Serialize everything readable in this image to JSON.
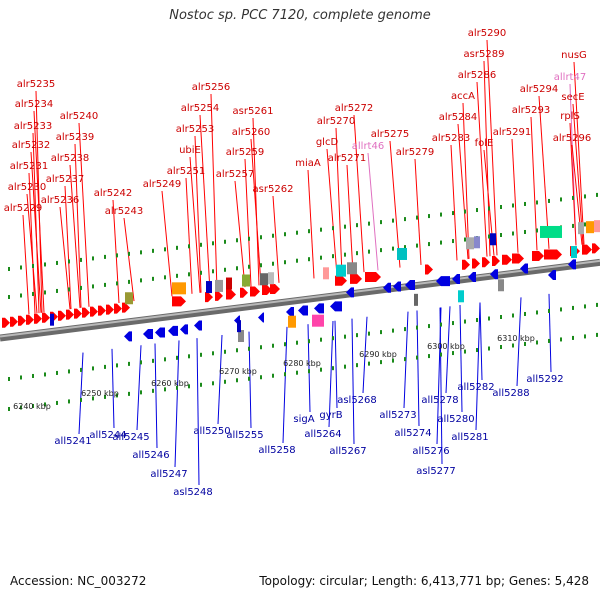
{
  "title": "Nostoc sp. PCC 7120, complete genome",
  "footer": {
    "accession": "Accession: NC_003272",
    "summary": "Topology: circular; Length: 6,413,771 bp; Genes: 5,428"
  },
  "colors": {
    "forward": "#ff0000",
    "reverse": "#0000e0",
    "trna": "#e070c0",
    "backbone": "#888888",
    "tick": "#1a8a1a"
  },
  "kbp_scale": [
    "6240 kbp",
    "6250 kbp",
    "6260 kbp",
    "6270 kbp",
    "6280 kbp",
    "6290 kbp",
    "6300 kbp",
    "6310 kbp"
  ],
  "genes_top": [
    "alr5235",
    "alr5234",
    "alr5233",
    "alr5232",
    "alr5231",
    "alr5230",
    "alr5229",
    "alr5240",
    "alr5239",
    "alr5238",
    "alr5237",
    "alr5236",
    "alr5242",
    "alr5243",
    "alr5256",
    "alr5254",
    "alr5253",
    "ubiE",
    "alr5251",
    "alr5249",
    "asr5261",
    "alr5260",
    "alr5259",
    "alr5257",
    "asr5262",
    "alr5272",
    "alr5270",
    "glcD",
    "alr5271",
    "allrt46",
    "miaA",
    "alr5275",
    "alr5279",
    "alr5290",
    "asr5289",
    "alr5286",
    "accA",
    "alr5284",
    "alr5283",
    "folE",
    "alr5291",
    "alr5294",
    "alr5293",
    "nusG",
    "allrt47",
    "secE",
    "rplS",
    "alr5296"
  ],
  "genes_bottom": [
    "all5241",
    "all5244",
    "all5245",
    "all5246",
    "all5247",
    "asl5248",
    "all5250",
    "all5255",
    "all5258",
    "sigA",
    "all5264",
    "gyrB",
    "asl5268",
    "all5267",
    "all5273",
    "all5274",
    "all5276",
    "asl5277",
    "all5278",
    "all5280",
    "all5281",
    "all5282",
    "all5288",
    "all5292"
  ]
}
